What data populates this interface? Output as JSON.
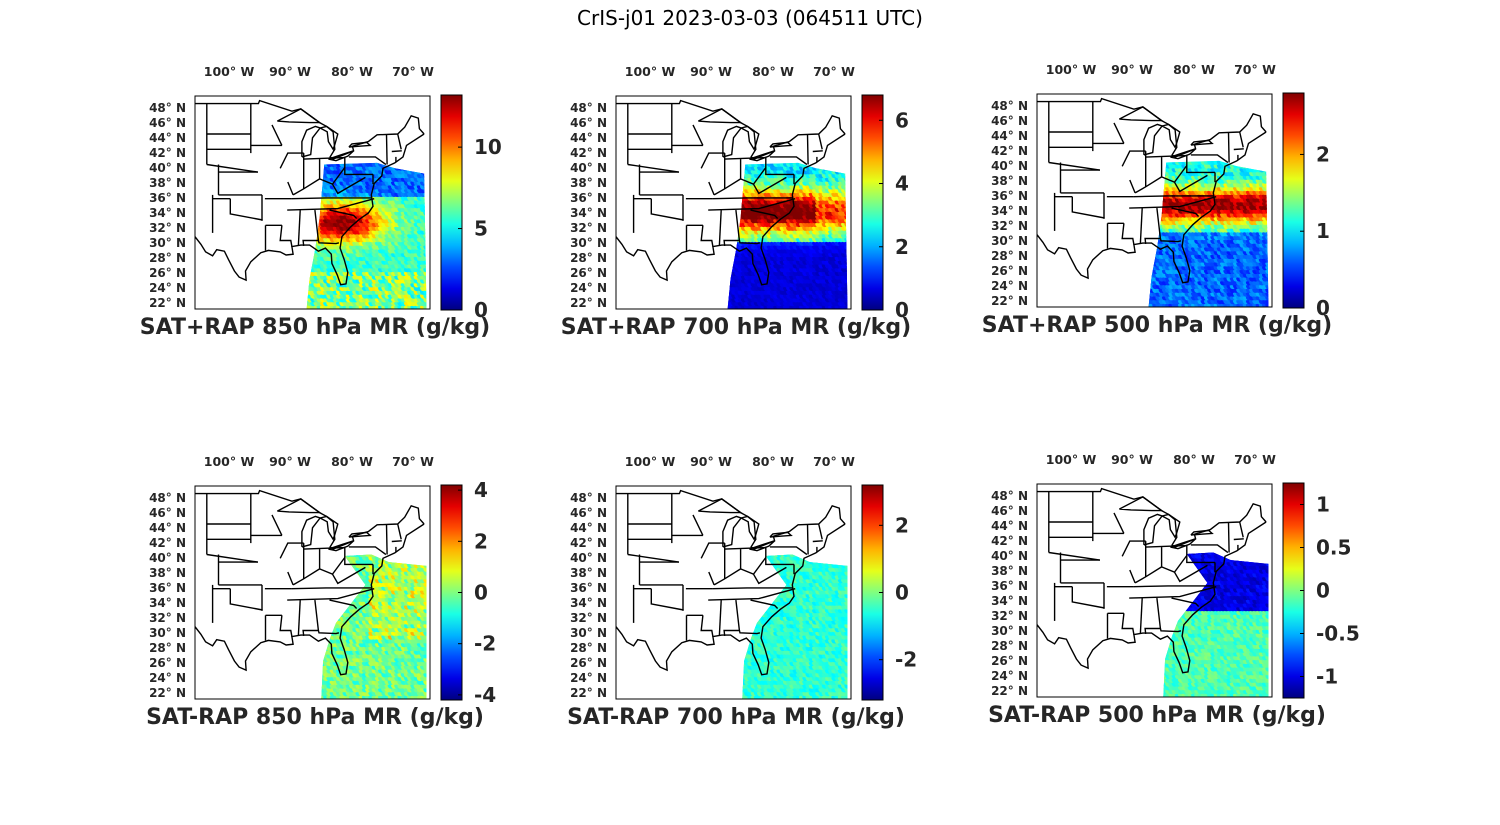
{
  "title": "CrIS-j01 2023-03-03 (064511 UTC)",
  "lon_ticks": [
    "100° W",
    "90° W",
    "80° W",
    "70° W"
  ],
  "lat_ticks": [
    "48° N",
    "46° N",
    "44° N",
    "42° N",
    "40° N",
    "38° N",
    "36° N",
    "34° N",
    "32° N",
    "30° N",
    "28° N",
    "26° N",
    "24° N",
    "22° N"
  ],
  "panels": [
    {
      "title": "SAT+RAP 850 hPa MR (g/kg)",
      "colorbar": {
        "min": 0,
        "max": 13.2,
        "ticks": [
          "0",
          "5",
          "10"
        ],
        "tick_values": [
          0,
          5,
          10
        ]
      }
    },
    {
      "title": "SAT+RAP 700 hPa MR (g/kg)",
      "colorbar": {
        "min": 0,
        "max": 6.8,
        "ticks": [
          "0",
          "2",
          "4",
          "6"
        ],
        "tick_values": [
          0,
          2,
          4,
          6
        ]
      }
    },
    {
      "title": "SAT+RAP 500 hPa MR (g/kg)",
      "colorbar": {
        "min": 0,
        "max": 2.8,
        "ticks": [
          "0",
          "1",
          "2"
        ],
        "tick_values": [
          0,
          1,
          2
        ]
      }
    },
    {
      "title": "SAT-RAP 850 hPa MR (g/kg)",
      "colorbar": {
        "min": -4.2,
        "max": 4.2,
        "ticks": [
          "-4",
          "-2",
          "0",
          "2",
          "4"
        ],
        "tick_values": [
          -4,
          -2,
          0,
          2,
          4
        ]
      }
    },
    {
      "title": "SAT-RAP 700 hPa MR (g/kg)",
      "colorbar": {
        "min": -3.2,
        "max": 3.2,
        "ticks": [
          "-2",
          "0",
          "2"
        ],
        "tick_values": [
          -2,
          0,
          2
        ]
      }
    },
    {
      "title": "SAT-RAP 500 hPa MR (g/kg)",
      "colorbar": {
        "min": -1.25,
        "max": 1.25,
        "ticks": [
          "-1",
          "-0.5",
          "0",
          "0.5",
          "1"
        ],
        "tick_values": [
          -1,
          -0.5,
          0,
          0.5,
          1
        ]
      }
    }
  ],
  "colormap": "jet"
}
